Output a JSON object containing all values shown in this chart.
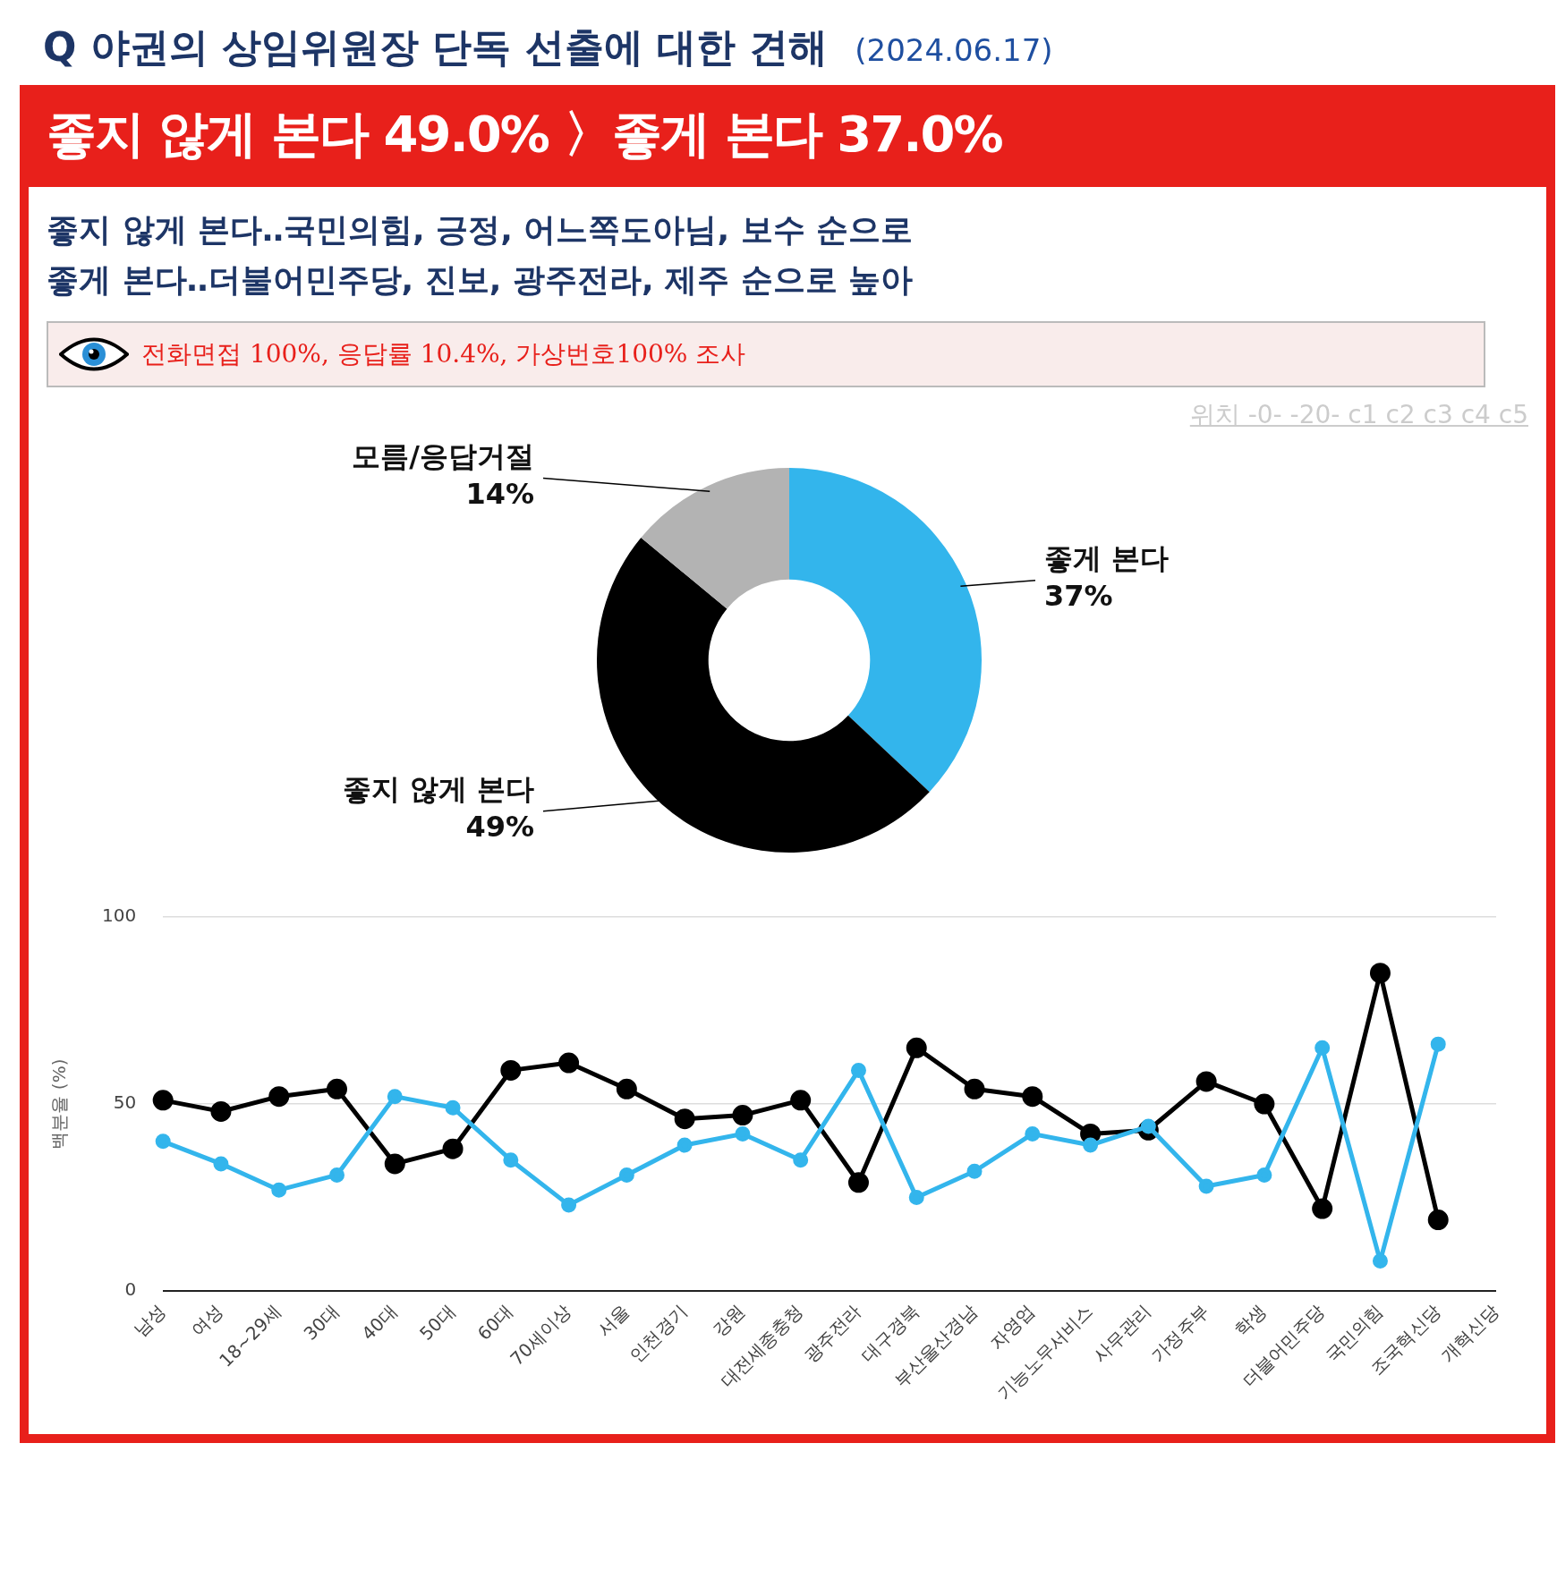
{
  "chart_data": [
    {
      "type": "donut",
      "title": "Q 야권의 상임위원장 단독 선출에 대한 견해",
      "subtitle": "(2024.06.17)",
      "annotations": [
        "좋지 않게 본다 49.0% 〉좋게 본다 37.0%",
        "좋지 않게 본다‥국민의힘, 긍정, 어느쪽도아님, 보수 순으로",
        "좋게 본다‥더불어민주당, 진보, 광주전라, 제주 순으로 높아",
        "전화면접 100%, 응답률 10.4%, 가상번호100% 조사",
        "위치 -0- -20- c1 c2 c3 c4 c5"
      ],
      "categories": [
        "좋게 본다",
        "좋지 않게 본다",
        "모름/응답거절"
      ],
      "values": [
        37,
        49,
        14
      ],
      "colors": [
        "#33b5ec",
        "#000000",
        "#b3b3b3"
      ],
      "value_labels": [
        "37%",
        "49%",
        "14%"
      ]
    },
    {
      "type": "line",
      "ylabel": "백분율 (%)",
      "categories": [
        "남성",
        "여성",
        "18~29세",
        "30대",
        "40대",
        "50대",
        "60대",
        "70세이상",
        "서울",
        "인천경기",
        "강원",
        "대전세종충청",
        "광주전라",
        "대구경북",
        "부산울산경남",
        "자영업",
        "기능노무서비스",
        "사무관리",
        "가정주부",
        "학생",
        "더불어민주당",
        "국민의힘",
        "조국혁신당",
        "개혁신당"
      ],
      "series": [
        {
          "color": "#33b5ec",
          "values": [
            40,
            34,
            27,
            31,
            52,
            49,
            35,
            23,
            31,
            39,
            42,
            35,
            59,
            25,
            32,
            42,
            39,
            44,
            28,
            31,
            65,
            8,
            66,
            null
          ]
        },
        {
          "color": "#000000",
          "values": [
            51,
            48,
            52,
            54,
            34,
            38,
            59,
            61,
            54,
            46,
            47,
            51,
            29,
            65,
            54,
            52,
            42,
            43,
            56,
            50,
            22,
            85,
            19,
            null
          ]
        }
      ],
      "ylim": [
        0,
        100
      ],
      "yticks": [
        0,
        50,
        100
      ],
      "grid": "y",
      "marker": "circle"
    }
  ]
}
